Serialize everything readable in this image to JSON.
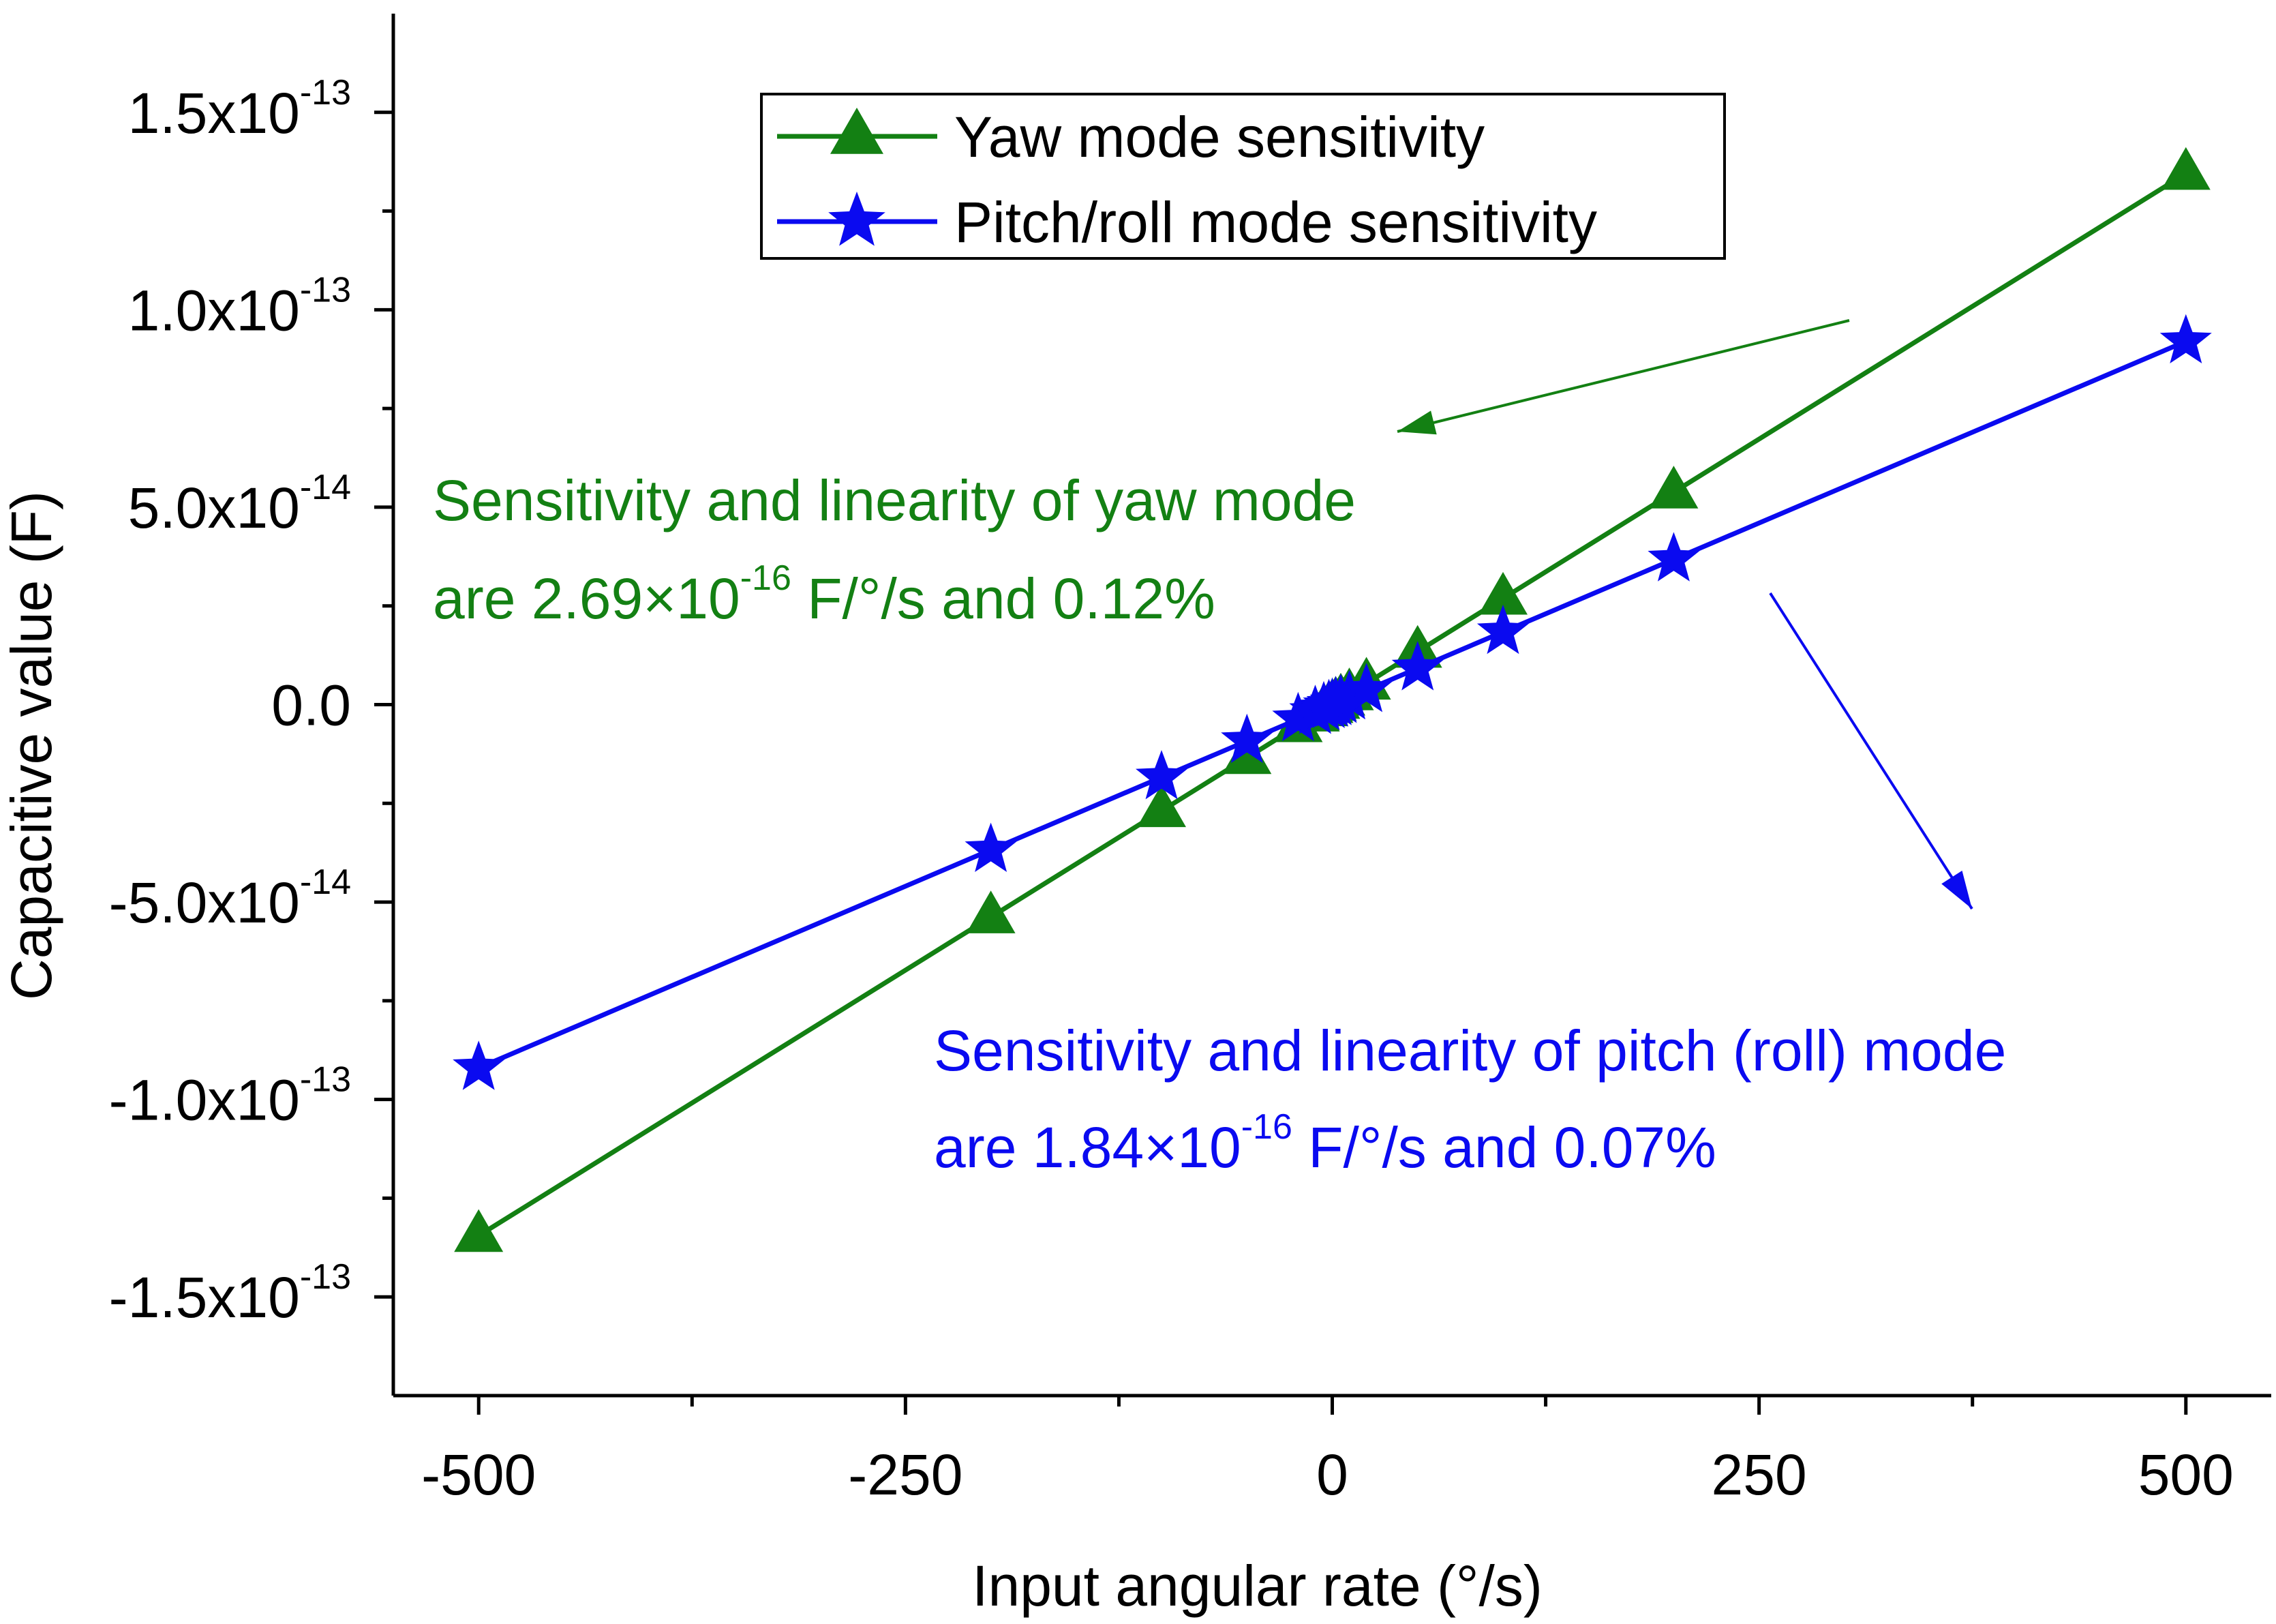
{
  "chart_data": {
    "type": "line",
    "xlabel": "Input angular rate (°/s)",
    "ylabel": "Capacitive value (F)",
    "xlim": [
      -550,
      550
    ],
    "ylim": [
      -1.75e-13,
      1.75e-13
    ],
    "x_major_ticks": [
      -500,
      -250,
      0,
      250,
      500
    ],
    "x_tick_labels": [
      "-500",
      "-250",
      "0",
      "250",
      "500"
    ],
    "x_minor_ticks": [
      -375,
      -125,
      125,
      375
    ],
    "y_major_ticks": [
      -1.5e-13,
      -1e-13,
      -5e-14,
      0,
      5e-14,
      1e-13,
      1.5e-13
    ],
    "y_tick_labels": [
      {
        "mantissa": "-1.5x10",
        "exp": "-13"
      },
      {
        "mantissa": "-1.0x10",
        "exp": "-13"
      },
      {
        "mantissa": "-5.0x10",
        "exp": "-14"
      },
      {
        "mantissa": "0.0",
        "exp": ""
      },
      {
        "mantissa": "5.0x10",
        "exp": "-14"
      },
      {
        "mantissa": "1.0x10",
        "exp": "-13"
      },
      {
        "mantissa": "1.5x10",
        "exp": "-13"
      }
    ],
    "y_minor_ticks": [
      -1.25e-13,
      -7.5e-14,
      -2.5e-14,
      2.5e-14,
      7.5e-14,
      1.25e-13
    ],
    "grid": false,
    "legend_position": "top-center",
    "series": [
      {
        "name": "Yaw mode sensitivity",
        "color": "#138013",
        "marker": "triangle",
        "x": [
          -500,
          -200,
          -100,
          -50,
          -20,
          -10,
          -5,
          -2,
          0,
          2,
          5,
          10,
          20,
          50,
          100,
          200,
          500
        ],
        "y": [
          -1.345e-13,
          -5.38e-14,
          -2.69e-14,
          -1.345e-14,
          -5.38e-15,
          -2.69e-15,
          -1.345e-15,
          -5.4e-16,
          0,
          5.4e-16,
          1.345e-15,
          2.69e-15,
          5.38e-15,
          1.345e-14,
          2.69e-14,
          5.38e-14,
          1.345e-13
        ]
      },
      {
        "name": "Pitch/roll mode sensitivity",
        "color": "#0a0af0",
        "marker": "star",
        "x": [
          -500,
          -200,
          -100,
          -50,
          -20,
          -10,
          -5,
          -2,
          0,
          2,
          5,
          10,
          20,
          50,
          100,
          200,
          500
        ],
        "y": [
          -9.2e-14,
          -3.68e-14,
          -1.84e-14,
          -9.2e-15,
          -3.68e-15,
          -1.84e-15,
          -9.2e-16,
          -3.7e-16,
          0,
          3.7e-16,
          9.2e-16,
          1.84e-15,
          3.68e-15,
          9.2e-15,
          1.84e-14,
          3.68e-14,
          9.2e-14
        ]
      }
    ],
    "annotations": [
      {
        "color": "#138013",
        "line1": "Sensitivity and linearity of yaw mode",
        "line2_pre": "are 2.69×10",
        "line2_exp": "-16",
        "line2_post": " F/°/s and 0.12%"
      },
      {
        "color": "#0a0af0",
        "line1": "Sensitivity and linearity of pitch (roll) mode",
        "line2_pre": "are 1.84×10",
        "line2_exp": "-16",
        "line2_post": " F/°/s and 0.07%"
      }
    ]
  }
}
